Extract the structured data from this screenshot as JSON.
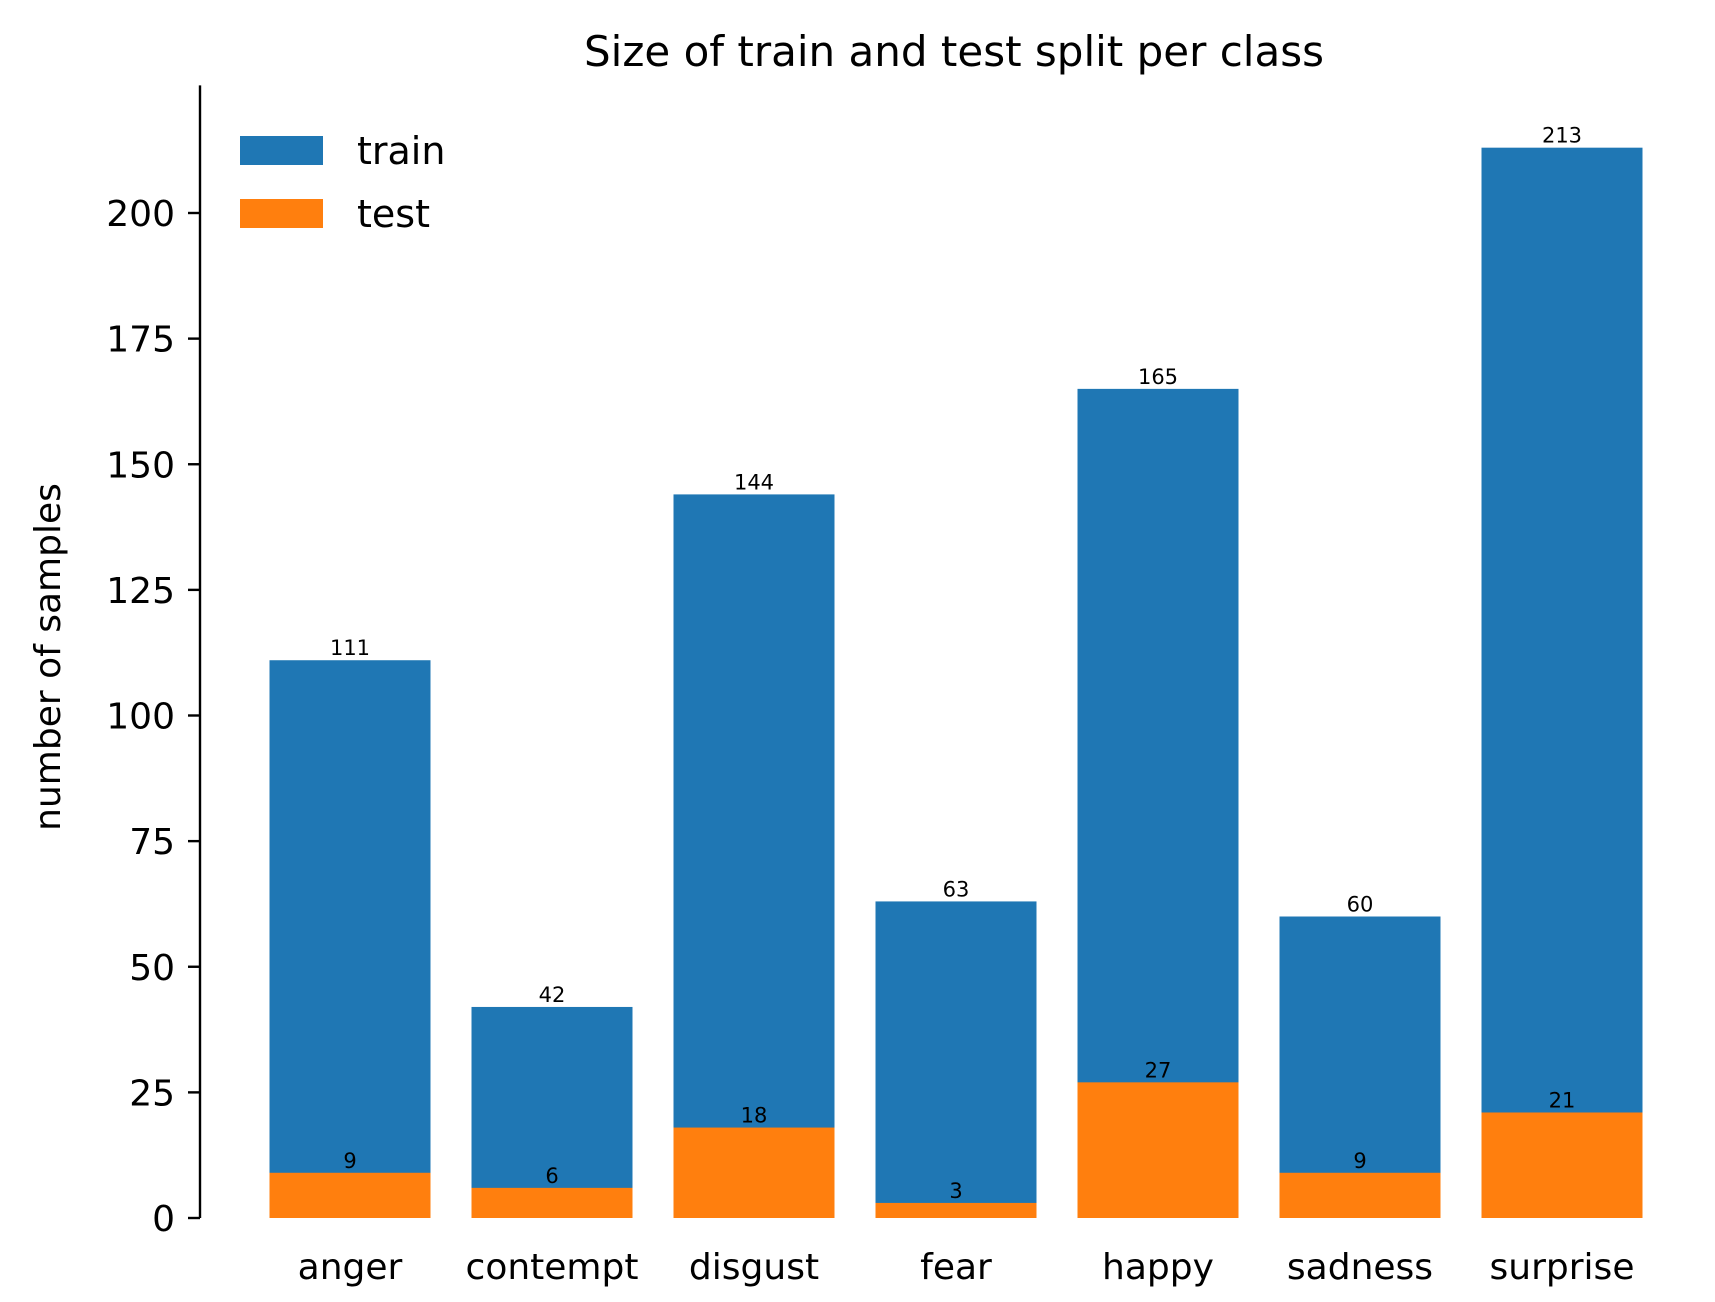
{
  "chart_data": {
    "type": "bar",
    "title": "Size of train and test split per class",
    "xlabel": "",
    "ylabel": "number of samples",
    "categories": [
      "anger",
      "contempt",
      "disgust",
      "fear",
      "happy",
      "sadness",
      "surprise"
    ],
    "series": [
      {
        "name": "train",
        "color": "#1f77b4",
        "values": [
          111,
          42,
          144,
          63,
          165,
          60,
          213
        ]
      },
      {
        "name": "test",
        "color": "#ff7f0e",
        "values": [
          9,
          6,
          18,
          3,
          27,
          9,
          21
        ]
      }
    ],
    "yticks": [
      0,
      25,
      50,
      75,
      100,
      125,
      150,
      175,
      200
    ],
    "ylim": [
      0,
      225
    ],
    "grid": false,
    "legend": "top-left"
  }
}
